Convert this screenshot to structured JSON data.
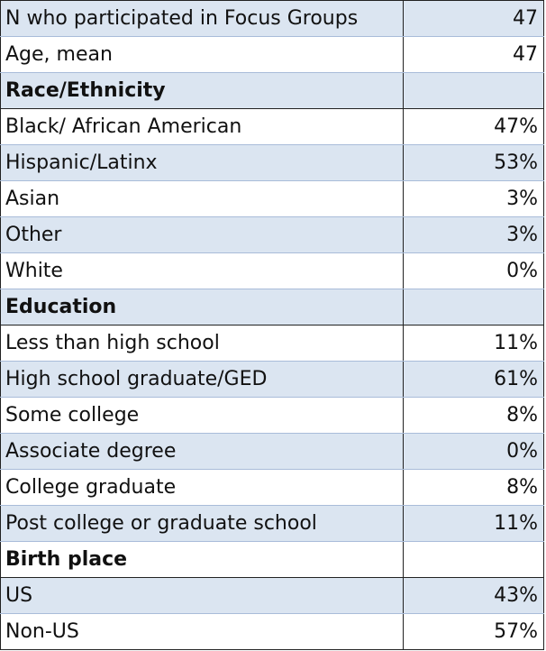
{
  "rows": [
    {
      "label": "N who participated in Focus Groups",
      "value": "47"
    },
    {
      "label": "Age, mean",
      "value": "47"
    },
    {
      "label": "Race/Ethnicity",
      "value": ""
    },
    {
      "label": "Black/ African American",
      "value": "47%"
    },
    {
      "label": "Hispanic/Latinx",
      "value": "53%"
    },
    {
      "label": "Asian",
      "value": "3%"
    },
    {
      "label": "Other",
      "value": "3%"
    },
    {
      "label": "White",
      "value": "0%"
    },
    {
      "label": "Education",
      "value": ""
    },
    {
      "label": "Less than high school",
      "value": "11%"
    },
    {
      "label": "High school graduate/GED",
      "value": "61%"
    },
    {
      "label": "Some college",
      "value": "8%"
    },
    {
      "label": "Associate degree",
      "value": "0%"
    },
    {
      "label": "College graduate",
      "value": "8%"
    },
    {
      "label": "Post college or graduate school",
      "value": "11%"
    },
    {
      "label": "Birth place",
      "value": ""
    },
    {
      "label": "US",
      "value": "43%"
    },
    {
      "label": "Non-US",
      "value": "57%"
    }
  ],
  "colors": {
    "shaded_row": "#dbe5f1",
    "plain_row": "#ffffff",
    "grid_line": "#a9bcd9",
    "border": "#222222"
  }
}
